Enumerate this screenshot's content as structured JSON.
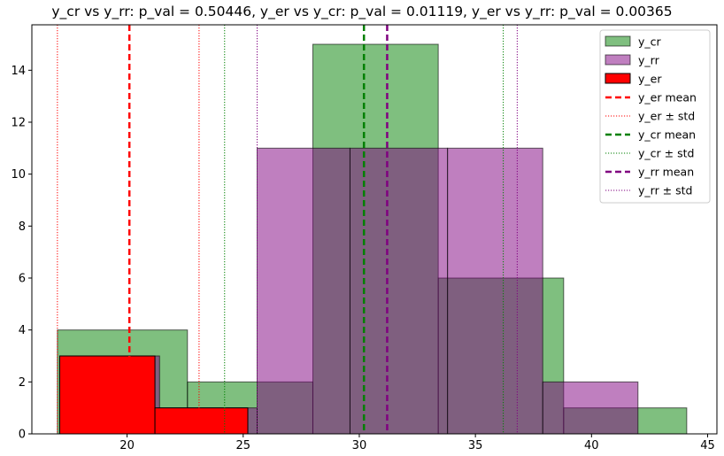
{
  "chart_data": {
    "type": "bar",
    "title": "y_cr vs y_rr: p_val = 0.50446, y_er vs y_cr: p_val = 0.01119, y_er vs y_rr: p_val = 0.00365",
    "xlabel": "",
    "ylabel": "",
    "xlim": [
      15.9,
      45.4
    ],
    "ylim": [
      0,
      15.75
    ],
    "xticks": [
      20,
      25,
      30,
      35,
      40,
      45
    ],
    "yticks": [
      0,
      2,
      4,
      6,
      8,
      10,
      12,
      14
    ],
    "grid": false,
    "legend_position": "top-right",
    "series": [
      {
        "name": "y_cr",
        "color": "#008000",
        "alpha": 0.5,
        "edge": "#000000",
        "bin_edges": [
          17.0,
          22.6,
          28.0,
          33.4,
          38.8,
          44.1
        ],
        "counts": [
          4,
          2,
          15,
          6,
          1
        ]
      },
      {
        "name": "y_rr",
        "color": "#800080",
        "alpha": 0.5,
        "edge": "#000000",
        "bin_edges": [
          17.3,
          21.4,
          25.6,
          29.6,
          33.8,
          37.9,
          42.0
        ],
        "counts": [
          3,
          1,
          11,
          11,
          11,
          2
        ]
      },
      {
        "name": "y_er",
        "color": "#ff0000",
        "alpha": 1.0,
        "edge": "#000000",
        "bin_edges": [
          17.1,
          21.2,
          25.2
        ],
        "counts": [
          3,
          1
        ]
      }
    ],
    "lines": [
      {
        "name": "y_er mean",
        "x": 20.1,
        "color": "#ff0000",
        "style": "dashed"
      },
      {
        "name": "y_er ± std",
        "x": [
          17.0,
          23.1
        ],
        "color": "#ff0000",
        "style": "dotted"
      },
      {
        "name": "y_cr mean",
        "x": 30.2,
        "color": "#008000",
        "style": "dashed"
      },
      {
        "name": "y_cr ± std",
        "x": [
          24.2,
          36.2
        ],
        "color": "#008000",
        "style": "dotted"
      },
      {
        "name": "y_rr mean",
        "x": 31.2,
        "color": "#800080",
        "style": "dashed"
      },
      {
        "name": "y_rr ± std",
        "x": [
          25.6,
          36.8
        ],
        "color": "#800080",
        "style": "dotted"
      }
    ],
    "legend": [
      "y_cr",
      "y_rr",
      "y_er",
      "y_er mean",
      "y_er ± std",
      "y_cr mean",
      "y_cr ± std",
      "y_rr mean",
      "y_rr ± std"
    ]
  }
}
